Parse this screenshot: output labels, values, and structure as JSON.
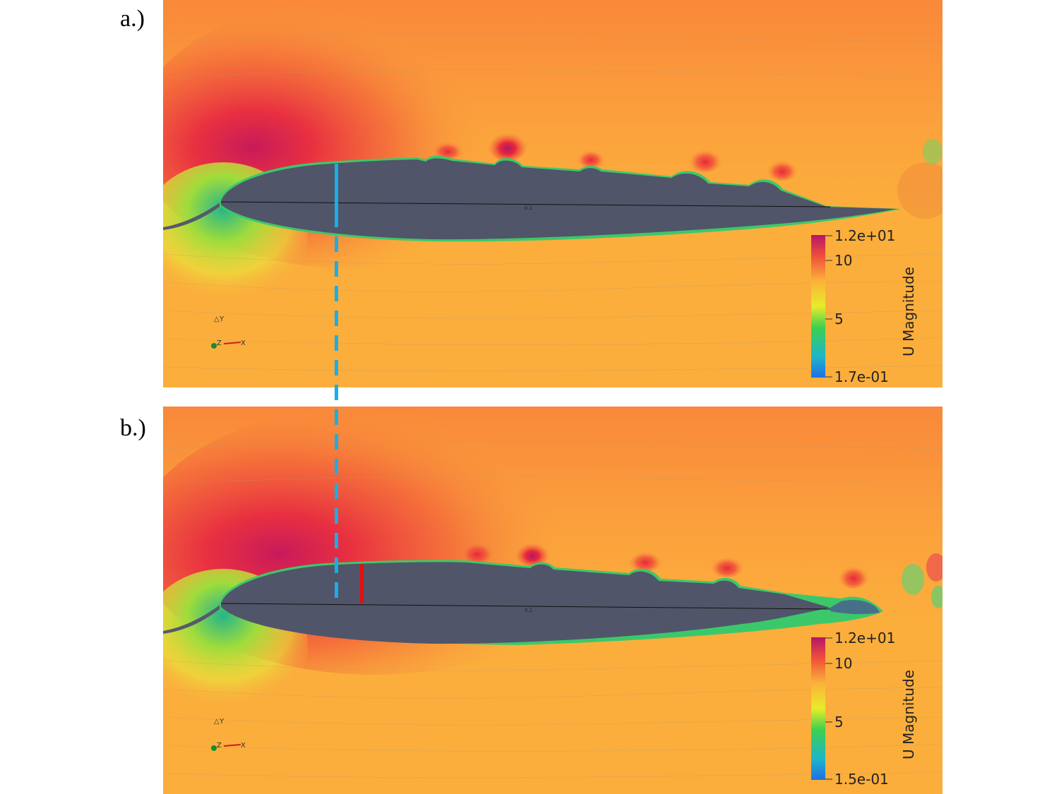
{
  "panels": [
    {
      "label": "a.)",
      "chord_label": "0.1",
      "colorbar": {
        "title": "U Magnitude",
        "max": "1.2e+01",
        "t10": "10",
        "t5": "5",
        "min": "1.7e-01"
      },
      "axes": {
        "y": "Y",
        "z": "Z",
        "x": "X"
      }
    },
    {
      "label": "b.)",
      "chord_label": "0.1",
      "colorbar": {
        "title": "U Magnitude",
        "max": "1.2e+01",
        "t10": "10",
        "t5": "5",
        "min": "1.5e-01"
      },
      "axes": {
        "y": "Y",
        "z": "Z",
        "x": "X"
      }
    }
  ],
  "colors": {
    "background_flow": "#fbae3c",
    "high_velocity": "#e8283a",
    "peak_velocity": "#b0186a",
    "low_velocity": "#28c07a",
    "airfoil_fill": "#515569",
    "reference_line": "#1aaee6",
    "marker_line": "#e01010"
  }
}
